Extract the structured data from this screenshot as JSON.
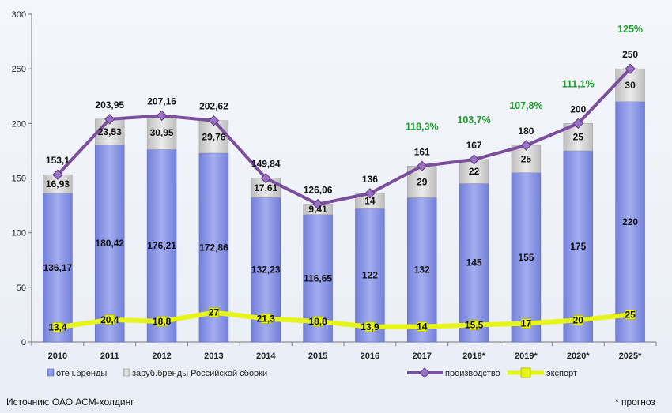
{
  "chart_data": {
    "type": "bar",
    "stacked": true,
    "categories": [
      "2010",
      "2011",
      "2012",
      "2013",
      "2014",
      "2015",
      "2016",
      "2017",
      "2018*",
      "2019*",
      "2020*",
      "2025*"
    ],
    "series": [
      {
        "name": "отеч.бренды",
        "kind": "bar",
        "color": "#8c97e3",
        "values": [
          136.17,
          180.42,
          176.21,
          172.86,
          132.23,
          116.65,
          122,
          132,
          145,
          155,
          175,
          220
        ],
        "labels": [
          "136,17",
          "180,42",
          "176,21",
          "172,86",
          "132,23",
          "116,65",
          "122",
          "132",
          "145",
          "155",
          "175",
          "220"
        ]
      },
      {
        "name": "заруб.бренды Российской сборки",
        "kind": "bar",
        "color": "#d6d6d6",
        "values": [
          16.93,
          23.53,
          30.95,
          29.76,
          17.61,
          9.41,
          14,
          29,
          22,
          25,
          25,
          30
        ],
        "labels": [
          "16,93",
          "23,53",
          "30,95",
          "29,76",
          "17,61",
          "9,41",
          "14",
          "29",
          "22",
          "25",
          "25",
          "30"
        ]
      },
      {
        "name": "производство",
        "kind": "line",
        "color": "#7b4f9c",
        "values": [
          153.1,
          203.95,
          207.16,
          202.62,
          149.84,
          126.06,
          136,
          161,
          167,
          180,
          200,
          250
        ],
        "labels": [
          "153,1",
          "203,95",
          "207,16",
          "202,62",
          "149,84",
          "126,06",
          "136",
          "161",
          "167",
          "180",
          "200",
          "250"
        ]
      },
      {
        "name": "экспорт",
        "kind": "line",
        "color": "#e6f516",
        "values": [
          13.4,
          20.4,
          18.8,
          27,
          21.3,
          18.8,
          13.9,
          14,
          15.5,
          17,
          20,
          25
        ],
        "labels": [
          "13,4",
          "20,4",
          "18,8",
          "27",
          "21,3",
          "18,8",
          "13,9",
          "14",
          "15,5",
          "17",
          "20",
          "25"
        ]
      }
    ],
    "annotations": [
      {
        "category": "2017",
        "text": "118,3%"
      },
      {
        "category": "2018*",
        "text": "103,7%"
      },
      {
        "category": "2019*",
        "text": "107,8%"
      },
      {
        "category": "2020*",
        "text": "111,1%"
      },
      {
        "category": "2025*",
        "text": "125%"
      }
    ],
    "ylim": [
      0,
      300
    ],
    "yticks": [
      0,
      50,
      100,
      150,
      200,
      250,
      300
    ],
    "grid": false,
    "legend_position": "bottom"
  },
  "footer": {
    "source": "Источник: ОАО АСМ-холдинг",
    "note": "* прогноз"
  },
  "colors": {
    "pct_text": "#1f9a2e"
  }
}
